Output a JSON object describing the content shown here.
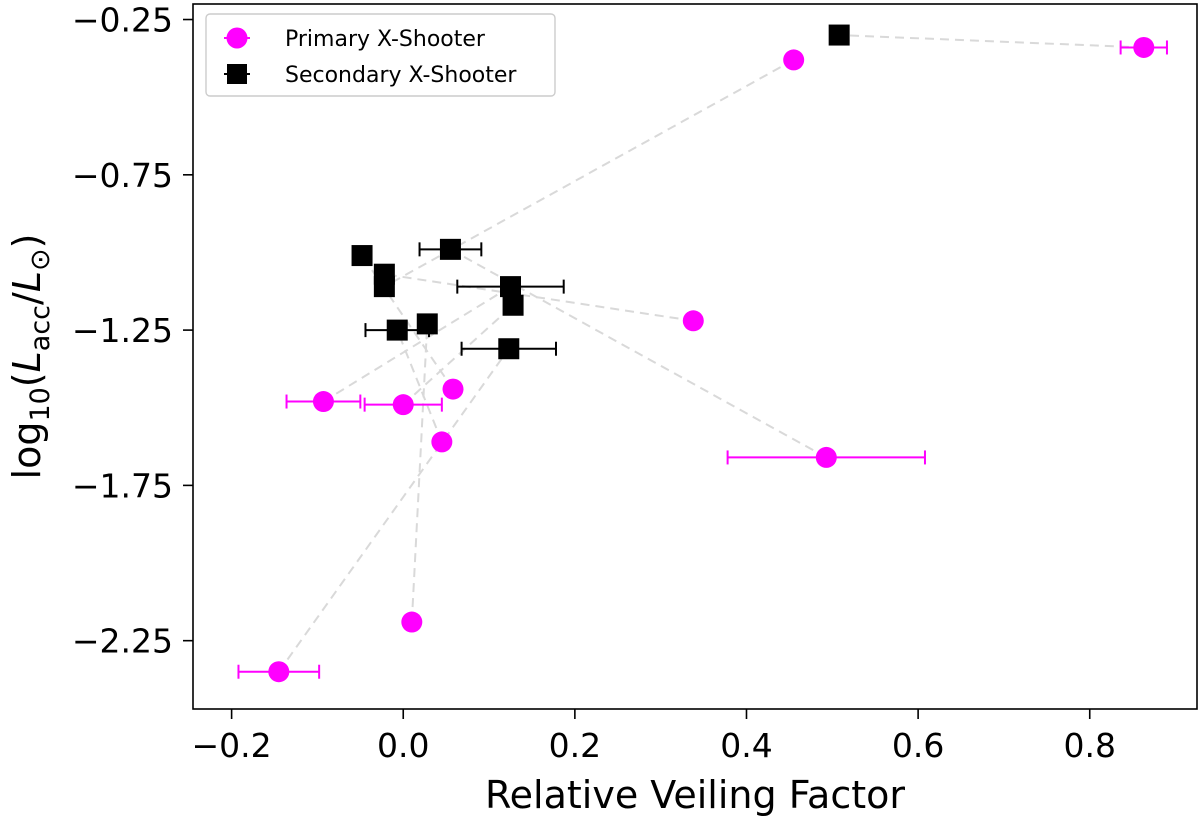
{
  "chart_data": {
    "type": "scatter",
    "xlabel": "Relative Veiling Factor",
    "ylabel_prefix": "log",
    "ylabel_sub": "10",
    "ylabel_var": "L",
    "ylabel_var_sub": "acc",
    "ylabel_ref": "L",
    "ylabel_ref_sub": "⊙",
    "xlim": [
      -0.245,
      0.925
    ],
    "ylim": [
      -2.47,
      -0.2
    ],
    "xticks": [
      -0.2,
      0.0,
      0.2,
      0.4,
      0.6,
      0.8
    ],
    "xtick_labels": [
      "−0.2",
      "0.0",
      "0.2",
      "0.4",
      "0.6",
      "0.8"
    ],
    "yticks": [
      -0.25,
      -0.75,
      -1.25,
      -1.75,
      -2.25
    ],
    "ytick_labels": [
      "−0.25",
      "−0.75",
      "−1.25",
      "−1.75",
      "−2.25"
    ],
    "grid": false,
    "legend_position": "top-left",
    "colors": {
      "primary": "#ff00ff",
      "secondary": "#000000",
      "connector": "#d9d9d9"
    },
    "series": [
      {
        "name": "Primary X-Shooter",
        "marker": "circle",
        "points": [
          {
            "x": 0.455,
            "y": -0.38
          },
          {
            "x": 0.863,
            "y": -0.34,
            "xerr": 0.027
          },
          {
            "x": 0.338,
            "y": -1.22
          },
          {
            "x": 0.493,
            "y": -1.66,
            "xerr": 0.115
          },
          {
            "x": -0.093,
            "y": -1.48,
            "xerr": 0.043
          },
          {
            "x": 0.0,
            "y": -1.49,
            "xerr": 0.045
          },
          {
            "x": 0.058,
            "y": -1.44
          },
          {
            "x": 0.045,
            "y": -1.61
          },
          {
            "x": 0.01,
            "y": -2.19
          },
          {
            "x": -0.145,
            "y": -2.35,
            "xerr": 0.047
          }
        ]
      },
      {
        "name": "Secondary X-Shooter",
        "marker": "square",
        "points": [
          {
            "x": 0.508,
            "y": -0.3
          },
          {
            "x": 0.055,
            "y": -0.99,
            "xerr": 0.036
          },
          {
            "x": -0.048,
            "y": -1.01
          },
          {
            "x": -0.022,
            "y": -1.07
          },
          {
            "x": -0.022,
            "y": -1.11
          },
          {
            "x": 0.125,
            "y": -1.11,
            "xerr": 0.062
          },
          {
            "x": 0.128,
            "y": -1.17
          },
          {
            "x": 0.028,
            "y": -1.23
          },
          {
            "x": -0.007,
            "y": -1.25,
            "xerr": 0.037
          },
          {
            "x": 0.123,
            "y": -1.31,
            "xerr": 0.055
          }
        ]
      }
    ],
    "connections": [
      [
        [
          0.455,
          -0.38
        ],
        [
          -0.022,
          -1.11
        ]
      ],
      [
        [
          0.863,
          -0.34
        ],
        [
          0.508,
          -0.3
        ]
      ],
      [
        [
          0.338,
          -1.22
        ],
        [
          -0.022,
          -1.07
        ]
      ],
      [
        [
          0.493,
          -1.66
        ],
        [
          0.055,
          -0.99
        ]
      ],
      [
        [
          -0.093,
          -1.48
        ],
        [
          0.125,
          -1.11
        ]
      ],
      [
        [
          0.0,
          -1.49
        ],
        [
          0.128,
          -1.17
        ]
      ],
      [
        [
          0.058,
          -1.44
        ],
        [
          -0.048,
          -1.01
        ]
      ],
      [
        [
          0.045,
          -1.61
        ],
        [
          -0.007,
          -1.25
        ]
      ],
      [
        [
          0.01,
          -2.19
        ],
        [
          0.028,
          -1.23
        ]
      ],
      [
        [
          -0.145,
          -2.35
        ],
        [
          0.123,
          -1.31
        ]
      ]
    ]
  }
}
